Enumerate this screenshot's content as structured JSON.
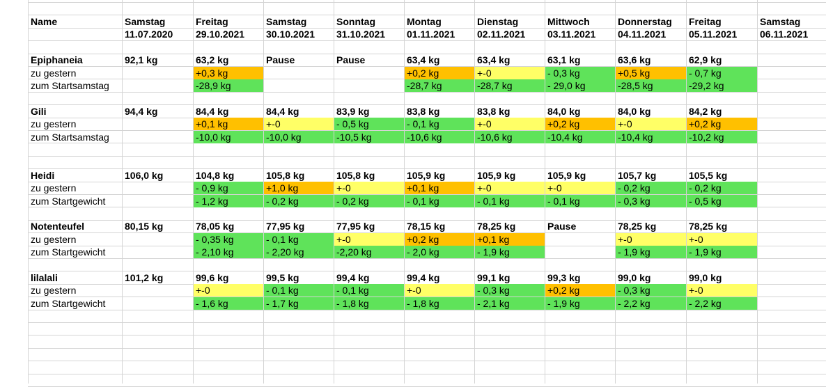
{
  "colors": {
    "green": "#5fe35a",
    "orange": "#ffc000",
    "yellow": "#ffff66"
  },
  "header": {
    "name_label": "Name",
    "columns": [
      {
        "day": "Samstag",
        "date": "11.07.2020"
      },
      {
        "day": "Freitag",
        "date": "29.10.2021"
      },
      {
        "day": "Samstag",
        "date": "30.10.2021"
      },
      {
        "day": "Sonntag",
        "date": "31.10.2021"
      },
      {
        "day": "Montag",
        "date": "01.11.2021"
      },
      {
        "day": "Dienstag",
        "date": "02.11.2021"
      },
      {
        "day": "Mittwoch",
        "date": "03.11.2021"
      },
      {
        "day": "Donnerstag",
        "date": "04.11.2021"
      },
      {
        "day": "Freitag",
        "date": "05.11.2021"
      },
      {
        "day": "Samstag",
        "date": "06.11.2021"
      }
    ]
  },
  "people": [
    {
      "name": "Epiphaneia",
      "weights": [
        "92,1 kg",
        "63,2 kg",
        "Pause",
        "Pause",
        "63,4 kg",
        "63,4 kg",
        "63,1 kg",
        "63,6 kg",
        "62,9 kg",
        ""
      ],
      "row2_label": "zu gestern",
      "row2": [
        [
          "",
          ""
        ],
        [
          "+0,3 kg",
          "orange"
        ],
        [
          "",
          ""
        ],
        [
          "",
          ""
        ],
        [
          "+0,2 kg",
          "orange"
        ],
        [
          "+-0",
          "yellow"
        ],
        [
          "- 0,3 kg",
          "green"
        ],
        [
          "+0,5 kg",
          "orange"
        ],
        [
          "- 0,7 kg",
          "green"
        ],
        [
          "",
          ""
        ]
      ],
      "row3_label": "zum Startsamstag",
      "row3": [
        [
          "",
          ""
        ],
        [
          "-28,9 kg",
          "green"
        ],
        [
          "",
          ""
        ],
        [
          "",
          ""
        ],
        [
          "-28,7 kg",
          "green"
        ],
        [
          "-28,7 kg",
          "green"
        ],
        [
          "- 29,0 kg",
          "green"
        ],
        [
          "-28,5 kg",
          "green"
        ],
        [
          "-29,2 kg",
          "green"
        ],
        [
          "",
          ""
        ]
      ]
    },
    {
      "name": "Gili",
      "weights": [
        "94,4 kg",
        "84,4 kg",
        "84,4 kg",
        "83,9 kg",
        "83,8 kg",
        "83,8 kg",
        "84,0 kg",
        "84,0 kg",
        "84,2 kg",
        ""
      ],
      "row2_label": "zu gestern",
      "row2": [
        [
          "",
          ""
        ],
        [
          "+0,1 kg",
          "orange"
        ],
        [
          "+-0",
          "yellow"
        ],
        [
          "- 0,5 kg",
          "green"
        ],
        [
          "- 0,1 kg",
          "green"
        ],
        [
          "+-0",
          "yellow"
        ],
        [
          "+0,2 kg",
          "orange"
        ],
        [
          "+-0",
          "yellow"
        ],
        [
          "+0,2 kg",
          "orange"
        ],
        [
          "",
          ""
        ]
      ],
      "row3_label": "zum Startsamstag",
      "row3": [
        [
          "",
          ""
        ],
        [
          "-10,0 kg",
          "green"
        ],
        [
          "-10,0 kg",
          "green"
        ],
        [
          "-10,5 kg",
          "green"
        ],
        [
          "-10,6 kg",
          "green"
        ],
        [
          "-10,6 kg",
          "green"
        ],
        [
          "-10,4 kg",
          "green"
        ],
        [
          "-10,4 kg",
          "green"
        ],
        [
          "-10,2 kg",
          "green"
        ],
        [
          "",
          ""
        ]
      ]
    },
    {
      "name": "Heidi",
      "weights": [
        "106,0 kg",
        "104,8 kg",
        "105,8 kg",
        "105,8 kg",
        "105,9 kg",
        "105,9 kg",
        "105,9 kg",
        "105,7 kg",
        "105,5 kg",
        ""
      ],
      "row2_label": "zu gestern",
      "row2": [
        [
          "",
          ""
        ],
        [
          "- 0,9 kg",
          "green"
        ],
        [
          "+1,0 kg",
          "orange"
        ],
        [
          "+-0",
          "yellow"
        ],
        [
          "+0,1 kg",
          "orange"
        ],
        [
          "+-0",
          "yellow"
        ],
        [
          "+-0",
          "yellow"
        ],
        [
          "- 0,2 kg",
          "green"
        ],
        [
          "- 0,2 kg",
          "green"
        ],
        [
          "",
          ""
        ]
      ],
      "row3_label": "zum Startgewicht",
      "row3": [
        [
          "",
          ""
        ],
        [
          "- 1,2 kg",
          "green"
        ],
        [
          "- 0,2 kg",
          "green"
        ],
        [
          "- 0,2 kg",
          "green"
        ],
        [
          "- 0,1 kg",
          "green"
        ],
        [
          "- 0,1 kg",
          "green"
        ],
        [
          "- 0,1 kg",
          "green"
        ],
        [
          "- 0,3 kg",
          "green"
        ],
        [
          "- 0,5 kg",
          "green"
        ],
        [
          "",
          ""
        ]
      ]
    },
    {
      "name": "Notenteufel",
      "weights": [
        "80,15 kg",
        "78,05 kg",
        "77,95 kg",
        "77,95 kg",
        "78,15 kg",
        "78,25 kg",
        "Pause",
        "78,25 kg",
        "78,25 kg",
        ""
      ],
      "row2_label": "zu gestern",
      "row2": [
        [
          "",
          ""
        ],
        [
          "- 0,35 kg",
          "green"
        ],
        [
          "- 0,1 kg",
          "green"
        ],
        [
          "+-0",
          "yellow"
        ],
        [
          "+0,2 kg",
          "orange"
        ],
        [
          "+0,1 kg",
          "orange"
        ],
        [
          "",
          ""
        ],
        [
          "+-0",
          "yellow"
        ],
        [
          "+-0",
          "yellow"
        ],
        [
          "",
          ""
        ]
      ],
      "row3_label": "zum Startgewicht",
      "row3": [
        [
          "",
          ""
        ],
        [
          "- 2,10 kg",
          "green"
        ],
        [
          "- 2,20 kg",
          "green"
        ],
        [
          "-2,20 kg",
          "green"
        ],
        [
          "- 2,0 kg",
          "green"
        ],
        [
          "- 1,9 kg",
          "green"
        ],
        [
          "",
          ""
        ],
        [
          "- 1,9 kg",
          "green"
        ],
        [
          "- 1,9 kg",
          "green"
        ],
        [
          "",
          ""
        ]
      ]
    },
    {
      "name": "lilalali",
      "weights": [
        "101,2 kg",
        "99,6 kg",
        "99,5 kg",
        "99,4 kg",
        "99,4 kg",
        "99,1 kg",
        "99,3 kg",
        "99,0 kg",
        "99,0 kg",
        ""
      ],
      "row2_label": "zu gestern",
      "row2": [
        [
          "",
          ""
        ],
        [
          "+-0",
          "yellow"
        ],
        [
          "- 0,1 kg",
          "green"
        ],
        [
          "- 0,1 kg",
          "green"
        ],
        [
          "+-0",
          "yellow"
        ],
        [
          "- 0,3 kg",
          "green"
        ],
        [
          "+0,2 kg",
          "orange"
        ],
        [
          "- 0,3 kg",
          "green"
        ],
        [
          "+-0",
          "yellow"
        ],
        [
          "",
          ""
        ]
      ],
      "row3_label": "zum Startgewicht",
      "row3": [
        [
          "",
          ""
        ],
        [
          "- 1,6 kg",
          "green"
        ],
        [
          "- 1,7 kg",
          "green"
        ],
        [
          "- 1,8 kg",
          "green"
        ],
        [
          "- 1,8 kg",
          "green"
        ],
        [
          "- 2,1 kg",
          "green"
        ],
        [
          "- 1,9 kg",
          "green"
        ],
        [
          "- 2,2 kg",
          "green"
        ],
        [
          "- 2,2 kg",
          "green"
        ],
        [
          "",
          ""
        ]
      ]
    }
  ]
}
